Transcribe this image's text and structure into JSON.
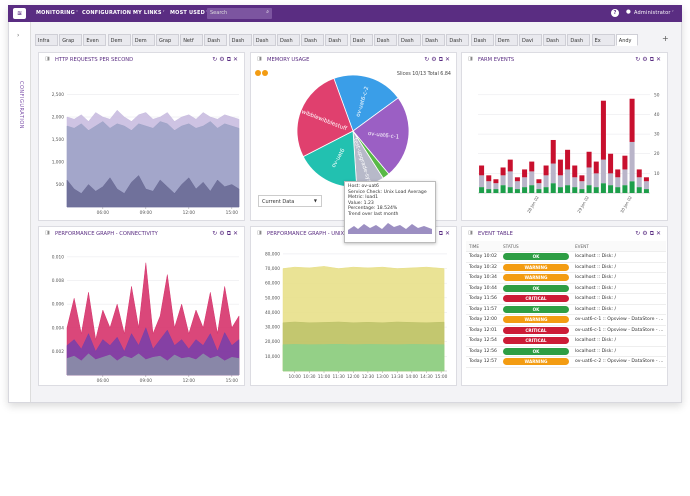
{
  "nav": {
    "menu": [
      "MONITORING",
      "CONFIGURATION",
      "MY LINKS",
      "MOST USED"
    ],
    "search": "Search",
    "user": "Administrator"
  },
  "sidebar": {
    "label": "CONFIGURATION"
  },
  "tabs": [
    "Infra",
    "Grap",
    "Even",
    "Dem",
    "Dem",
    "Grap",
    "Netf",
    "Dash",
    "Dash",
    "Dash",
    "Dash",
    "Dash",
    "Dash",
    "Dash",
    "Dash",
    "Dash",
    "Dash",
    "Dash",
    "Dash",
    "Dem",
    "Davi",
    "Dash",
    "Dash",
    "Ex",
    "Andy"
  ],
  "panels": [
    {
      "title": "HTTP REQUESTS PER SECOND",
      "chart": {
        "type": "area",
        "x": [
          3.5,
          4,
          4.5,
          5,
          5.5,
          6,
          6.5,
          7,
          7.5,
          8,
          8.5,
          9,
          9.5,
          10,
          10.5,
          11,
          11.5,
          12,
          12.5,
          13,
          13.5,
          14,
          14.5,
          15,
          15.5
        ],
        "series": [
          {
            "color": "#c9bde0",
            "values": [
              2000,
              1950,
              2050,
              1900,
              2100,
              2000,
              1950,
              2150,
              2000,
              1900,
              2050,
              2100,
              1950,
              2000,
              2100,
              1900,
              2000,
              2050,
              1950,
              2100,
              2000,
              1950,
              2050,
              2000,
              1950
            ]
          },
          {
            "color": "#9ea3c6",
            "values": [
              1800,
              1750,
              1850,
              1700,
              1800,
              1900,
              1750,
              1850,
              1800,
              1700,
              1850,
              1800,
              1750,
              1900,
              1850,
              1700,
              1800,
              1850,
              1750,
              1800,
              1900,
              1750,
              1850,
              1800,
              1750
            ]
          },
          {
            "color": "#6a6b96",
            "values": [
              600,
              400,
              300,
              500,
              350,
              450,
              650,
              400,
              300,
              550,
              700,
              400,
              350,
              600,
              450,
              300,
              500,
              650,
              400,
              550,
              350,
              600,
              450,
              500,
              400
            ]
          }
        ],
        "xlim": [
          3.5,
          15.5
        ],
        "xticks": [
          {
            "value": 6,
            "label": "06:00"
          },
          {
            "value": 9,
            "label": "09:00"
          },
          {
            "value": 12,
            "label": "12:00"
          },
          {
            "value": 15,
            "label": "15:00"
          }
        ],
        "ylim": [
          0,
          2800
        ],
        "yticks": [
          500,
          {
            "value": 1000,
            "label": "1,000"
          },
          {
            "value": 1500,
            "label": "1,500"
          },
          {
            "value": 2000,
            "label": "2,000"
          },
          {
            "value": 2500,
            "label": "2,500"
          }
        ]
      }
    },
    {
      "title": "MEMORY USAGE",
      "info": "Slices 10/13 Total 6.84",
      "select": "Current Data",
      "chart": {
        "type": "pie",
        "slices": [
          {
            "name": "ov-uat6-c-2",
            "value": 20.5,
            "color": "#3a9ee8"
          },
          {
            "name": "ov-uat6-c-1",
            "value": 24,
            "color": "#9b5fc4"
          },
          {
            "name": null,
            "value": 2,
            "color": "#58b947"
          },
          {
            "name": "test-upgrade-sys",
            "value": 8,
            "color": "#b7b9c9"
          },
          {
            "name": "ov-uat6",
            "value": 18.5,
            "color": "#22c1b0"
          },
          {
            "name": "wibblewibblestuff",
            "value": 27,
            "color": "#e0406e"
          }
        ]
      },
      "tooltip": [
        "Host: ov-uat6",
        "Service Check: Unix Load Average",
        "Metric: load1",
        "Value: 1.23",
        "Percentage: 18.524%",
        "Trend over last month"
      ]
    },
    {
      "title": "FARM EVENTS",
      "chart": {
        "type": "stacked-bar",
        "categories": [
          null,
          null,
          null,
          null,
          null,
          null,
          null,
          null,
          "28 Jan 02",
          null,
          null,
          null,
          null,
          null,
          null,
          "29 Jan 02",
          null,
          null,
          null,
          null,
          null,
          "30 Jan 02",
          null,
          null
        ],
        "series": [
          {
            "color": "#1d9e4a",
            "values": [
              3,
              2,
              2,
              4,
              3,
              2,
              3,
              4,
              2,
              3,
              5,
              3,
              4,
              3,
              2,
              4,
              3,
              5,
              4,
              3,
              4,
              6,
              3,
              2
            ]
          },
          {
            "color": "#b9b4c9",
            "values": [
              6,
              4,
              3,
              5,
              8,
              4,
              5,
              7,
              3,
              6,
              10,
              6,
              8,
              5,
              4,
              9,
              7,
              12,
              6,
              5,
              8,
              20,
              5,
              4
            ]
          },
          {
            "color": "#c8102e",
            "values": [
              5,
              3,
              2,
              4,
              6,
              2,
              4,
              5,
              2,
              5,
              12,
              8,
              10,
              6,
              3,
              8,
              6,
              30,
              10,
              4,
              7,
              22,
              4,
              2
            ]
          }
        ],
        "ylim": [
          0,
          55
        ],
        "yticks": [
          10,
          20,
          30,
          40,
          50
        ]
      }
    },
    {
      "title": "PERFORMANCE GRAPH - CONNECTIVITY",
      "chart": {
        "type": "area",
        "x": [
          3.5,
          4,
          4.5,
          5,
          5.5,
          6,
          6.5,
          7,
          7.5,
          8,
          8.5,
          9,
          9.5,
          10,
          10.5,
          11,
          11.5,
          12,
          12.5,
          13,
          13.5,
          14,
          14.5,
          15,
          15.5
        ],
        "series": [
          {
            "color": "#d6336c",
            "values": [
              0.004,
              0.0065,
              0.0035,
              0.007,
              0.003,
              0.0055,
              0.004,
              0.006,
              0.0035,
              0.0075,
              0.004,
              0.0095,
              0.0035,
              0.005,
              0.0085,
              0.004,
              0.006,
              0.0035,
              0.0055,
              0.004,
              0.007,
              0.0035,
              0.0075,
              0.004,
              0.005
            ]
          },
          {
            "color": "#7b3fa8",
            "values": [
              0.0025,
              0.003,
              0.0022,
              0.0035,
              0.002,
              0.003,
              0.0025,
              0.0032,
              0.002,
              0.0035,
              0.0025,
              0.004,
              0.0022,
              0.003,
              0.0038,
              0.0025,
              0.003,
              0.0022,
              0.003,
              0.0025,
              0.0035,
              0.002,
              0.0036,
              0.0025,
              0.003
            ]
          },
          {
            "color": "#8a8fa8",
            "values": [
              0.0014,
              0.0016,
              0.0012,
              0.0018,
              0.0013,
              0.0015,
              0.0017,
              0.0012,
              0.0016,
              0.0014,
              0.0018,
              0.0013,
              0.0015,
              0.0016,
              0.0012,
              0.0017,
              0.0014,
              0.0015,
              0.0013,
              0.0018,
              0.0014,
              0.0016,
              0.0012,
              0.0015,
              0.0014
            ]
          }
        ],
        "xlim": [
          3.5,
          15.5
        ],
        "xticks": [
          {
            "value": 6,
            "label": "06:00"
          },
          {
            "value": 9,
            "label": "09:00"
          },
          {
            "value": 12,
            "label": "12:00"
          },
          {
            "value": 15,
            "label": "15:00"
          }
        ],
        "ylim": [
          0,
          0.0105
        ],
        "yticks": [
          0.002,
          0.004,
          0.006,
          0.008,
          {
            "value": 0.01,
            "label": "0.010"
          }
        ]
      }
    },
    {
      "title": "PERFORMANCE GRAPH - UNIX MEMORY",
      "chart": {
        "type": "area",
        "x": [
          9.6,
          10,
          10.5,
          11,
          11.5,
          12,
          12.5,
          13,
          13.5,
          14,
          14.5,
          15.1
        ],
        "series": [
          {
            "color": "#e8e08a",
            "values": [
              70000,
              71000,
              70500,
              71500,
              70000,
              71000,
              70500,
              71000,
              70000,
              70500,
              71000,
              70000
            ]
          },
          {
            "color": "#bfc36a",
            "values": [
              33000,
              33500,
              33000,
              33200,
              33500,
              33000,
              33300,
              33000,
              33500,
              33200,
              33000,
              33400
            ]
          },
          {
            "color": "#8fd08a",
            "values": [
              18000,
              18200,
              18000,
              18100,
              18300,
              18000,
              18200,
              18100,
              18000,
              18200,
              18100,
              18000
            ]
          }
        ],
        "xlim": [
          9.6,
          15.2
        ],
        "xticks": [
          {
            "value": 10,
            "label": "10:00"
          },
          {
            "value": 10.5,
            "label": "10:30"
          },
          {
            "value": 11,
            "label": "11:00"
          },
          {
            "value": 11.5,
            "label": "11:30"
          },
          {
            "value": 12,
            "label": "12:00"
          },
          {
            "value": 12.5,
            "label": "12:30"
          },
          {
            "value": 13,
            "label": "13:00"
          },
          {
            "value": 13.5,
            "label": "13:30"
          },
          {
            "value": 14,
            "label": "14:00"
          },
          {
            "value": 14.5,
            "label": "14:30"
          },
          {
            "value": 15,
            "label": "15:00"
          }
        ],
        "ylim": [
          0,
          82000
        ],
        "yticks": [
          {
            "value": 10000,
            "label": "10,000"
          },
          {
            "value": 20000,
            "label": "20,000"
          },
          {
            "value": 30000,
            "label": "30,000"
          },
          {
            "value": 40000,
            "label": "40,000"
          },
          {
            "value": 50000,
            "label": "50,000"
          },
          {
            "value": 60000,
            "label": "60,000"
          },
          {
            "value": 70000,
            "label": "70,000"
          },
          {
            "value": 80000,
            "label": "80,000"
          }
        ]
      }
    },
    {
      "title": "EVENT TABLE",
      "table": {
        "header": [
          "TIME",
          "STATUS",
          "EVENT"
        ],
        "rows": [
          [
            "Today 10:02",
            "OK",
            "localhost :: Disk: /"
          ],
          [
            "Today 10:32",
            "WARNING",
            "localhost :: Disk: /"
          ],
          [
            "Today 10:34",
            "WARNING",
            "localhost :: Disk: /"
          ],
          [
            "Today 10:44",
            "OK",
            "localhost :: Disk: /"
          ],
          [
            "Today 11:56",
            "CRITICAL",
            "localhost :: Disk: /"
          ],
          [
            "Today 11:57",
            "OK",
            "localhost :: Disk: /"
          ],
          [
            "Today 12:00",
            "WARNING",
            "ov-uat6-c-1 :: Opsview - DataStore - ..."
          ],
          [
            "Today 12:01",
            "CRITICAL",
            "ov-uat6-c-1 :: Opsview - DataStore - ..."
          ],
          [
            "Today 12:54",
            "CRITICAL",
            "localhost :: Disk: /"
          ],
          [
            "Today 12:56",
            "OK",
            "localhost :: Disk: /"
          ],
          [
            "Today 12:57",
            "WARNING",
            "ov-uat6-c-2 :: Opsview - DataStore - ..."
          ]
        ]
      }
    }
  ]
}
